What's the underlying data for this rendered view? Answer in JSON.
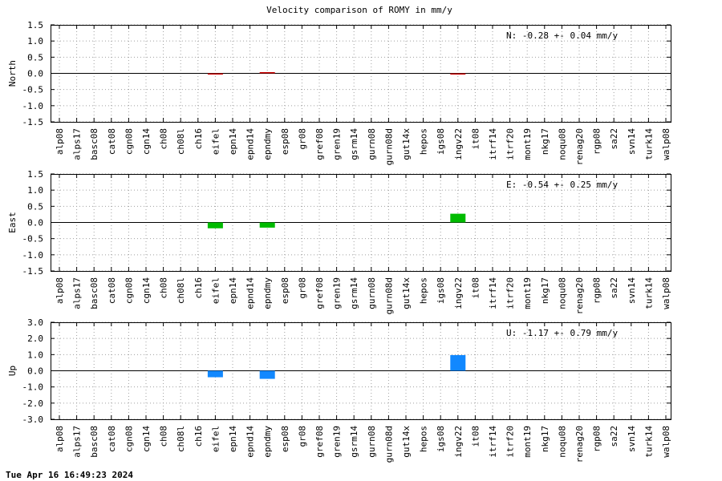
{
  "title": "Velocity comparison of ROMY in mm/y",
  "footer": "Tue Apr 16 16:49:23 2024",
  "chart_data": [
    {
      "type": "bar",
      "ylabel": "North",
      "ylim": [
        -1.5,
        1.5
      ],
      "yticks": [
        1.5,
        1.0,
        0.5,
        0.0,
        -0.5,
        -1.0,
        -1.5
      ],
      "ytick_labels": [
        "1.5",
        "1.0",
        "0.5",
        "0.0",
        "-0.5",
        "-1.0",
        "-1.5"
      ],
      "color": "#cc0000",
      "annotation": "N:  -0.28 +-  0.04 mm/y",
      "grid": true,
      "categories": [
        "alp08",
        "alps17",
        "basc08",
        "cat08",
        "cgn08",
        "cgn14",
        "ch08",
        "ch08l",
        "ch16",
        "eifel",
        "epn14",
        "epnd14",
        "epndmy",
        "esp08",
        "gr08",
        "gref08",
        "gren19",
        "gsrm14",
        "gurn08",
        "gurn08d",
        "gut14x",
        "hepos",
        "igs08",
        "ingv22",
        "it08",
        "itrf14",
        "itrf20",
        "mont19",
        "nkg17",
        "noqu08",
        "renag20",
        "rgp08",
        "sa22",
        "svn14",
        "turk14",
        "walp08"
      ],
      "values": [
        0,
        0,
        0,
        0,
        0,
        0,
        0,
        0,
        0,
        -0.03,
        0,
        0,
        0.01,
        0,
        0,
        0,
        0,
        0,
        0,
        0,
        0,
        0,
        0,
        -0.02,
        0,
        0,
        0,
        0,
        0,
        0,
        0,
        0,
        0,
        0,
        0,
        0
      ]
    },
    {
      "type": "bar",
      "ylabel": "East",
      "ylim": [
        -1.5,
        1.5
      ],
      "yticks": [
        1.5,
        1.0,
        0.5,
        0.0,
        -0.5,
        -1.0,
        -1.5
      ],
      "ytick_labels": [
        "1.5",
        "1.0",
        "0.5",
        "0.0",
        "-0.5",
        "-1.0",
        "-1.5"
      ],
      "color": "#00bb00",
      "annotation": "E:  -0.54 +-  0.25 mm/y",
      "grid": true,
      "categories": [
        "alp08",
        "alps17",
        "basc08",
        "cat08",
        "cgn08",
        "cgn14",
        "ch08",
        "ch08l",
        "ch16",
        "eifel",
        "epn14",
        "epnd14",
        "epndmy",
        "esp08",
        "gr08",
        "gref08",
        "gren19",
        "gsrm14",
        "gurn08",
        "gurn08d",
        "gut14x",
        "hepos",
        "igs08",
        "ingv22",
        "it08",
        "itrf14",
        "itrf20",
        "mont19",
        "nkg17",
        "noqu08",
        "renag20",
        "rgp08",
        "sa22",
        "svn14",
        "turk14",
        "walp08"
      ],
      "values": [
        0,
        0,
        0,
        0,
        0,
        0,
        0,
        0,
        0,
        -0.18,
        0,
        0,
        -0.16,
        0,
        0,
        0,
        0,
        0,
        0,
        0,
        0,
        0,
        0,
        0.27,
        0,
        0,
        0,
        0,
        0,
        0,
        0,
        0,
        0,
        0,
        0,
        0
      ]
    },
    {
      "type": "bar",
      "ylabel": "Up",
      "ylim": [
        -3.0,
        3.0
      ],
      "yticks": [
        3.0,
        2.0,
        1.0,
        0.0,
        -1.0,
        -2.0,
        -3.0
      ],
      "ytick_labels": [
        "3.0",
        "2.0",
        "1.0",
        "0.0",
        "-1.0",
        "-2.0",
        "-3.0"
      ],
      "color": "#1188ff",
      "annotation": "U:  -1.17 +-  0.79 mm/y",
      "grid": true,
      "categories": [
        "alp08",
        "alps17",
        "basc08",
        "cat08",
        "cgn08",
        "cgn14",
        "ch08",
        "ch08l",
        "ch16",
        "eifel",
        "epn14",
        "epnd14",
        "epndmy",
        "esp08",
        "gr08",
        "gref08",
        "gren19",
        "gsrm14",
        "gurn08",
        "gurn08d",
        "gut14x",
        "hepos",
        "igs08",
        "ingv22",
        "it08",
        "itrf14",
        "itrf20",
        "mont19",
        "nkg17",
        "noqu08",
        "renag20",
        "rgp08",
        "sa22",
        "svn14",
        "turk14",
        "walp08"
      ],
      "values": [
        0,
        0,
        0,
        0,
        0,
        0,
        0,
        0,
        0,
        -0.4,
        0,
        0,
        -0.5,
        0,
        0,
        0,
        0,
        0,
        0,
        0,
        0,
        0,
        0,
        0.97,
        0,
        0,
        0,
        0,
        0,
        0,
        0,
        0,
        0,
        0,
        0,
        0
      ]
    }
  ]
}
